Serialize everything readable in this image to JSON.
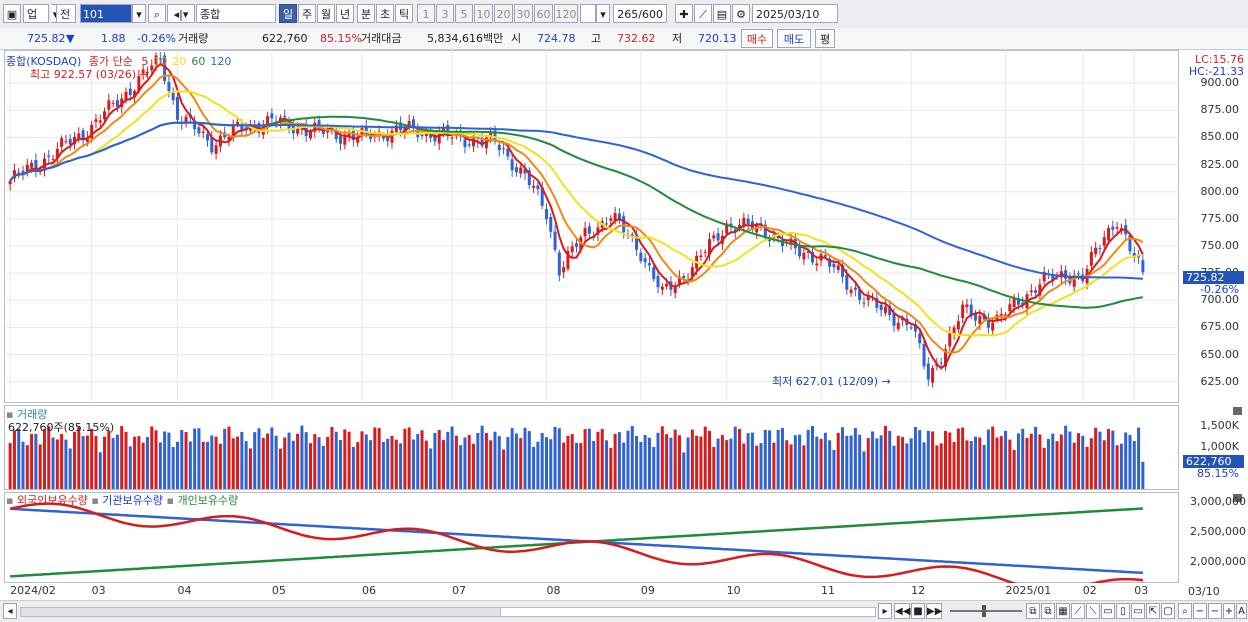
{
  "toolbar": {
    "market": "업",
    "prev": "전",
    "code": "101",
    "index_name": "종합(KOSDAQ)",
    "periods": [
      "일",
      "주",
      "월",
      "년",
      "분",
      "초",
      "틱"
    ],
    "active_period": "일",
    "intervals": [
      "1",
      "3",
      "5",
      "10",
      "20",
      "30",
      "60",
      "120"
    ],
    "count": "265",
    "total": "/600",
    "date": "2025/03/10"
  },
  "infobar": {
    "price": "725.82",
    "change": "1.88",
    "change_pct": "-0.26%",
    "volume_label": "거래량",
    "volume": "622,760",
    "volume_pct": "85.15%",
    "amount_label": "거래대금",
    "amount": "5,834,616백만",
    "open_label": "시",
    "open": "724.78",
    "high_label": "고",
    "high": "732.62",
    "low_label": "저",
    "low": "720.13",
    "buy_label": "매수",
    "sell_label": "매도",
    "eval_label": "평"
  },
  "price_panel": {
    "legend_name": "종합(KOSDAQ)",
    "legend_type": "종가 단순",
    "ma_periods": [
      "5",
      "10",
      "20",
      "60",
      "120"
    ],
    "ma_colors": [
      "#d81b1b",
      "#f08a12",
      "#f2e21a",
      "#1e8c3a",
      "#2f62d6"
    ],
    "max_label": "최고 922.57 (03/26)",
    "min_label": "최저 627.01 (12/09)",
    "lc": "LC:15.76",
    "hc": "HC:-21.33",
    "current": "725.82",
    "current_pct": "-0.26%"
  },
  "volume_panel": {
    "legend": "거래량",
    "value_label": "622,760주(85.15%)",
    "current": "622,760",
    "current_pct": "85.15%"
  },
  "holding_panel": {
    "legends": [
      "외국인보유수량",
      "기관보유수량",
      "개인보유수량"
    ],
    "colors": [
      "#d81b1b",
      "#2f62d6",
      "#1e8c3a"
    ]
  },
  "x_axis": [
    "2024/02",
    "03",
    "04",
    "05",
    "06",
    "07",
    "08",
    "09",
    "10",
    "11",
    "12",
    "2025/01",
    "02",
    "03"
  ],
  "x_axis_end": "03/10",
  "chart_data": [
    {
      "type": "candlestick",
      "title": "",
      "ylim": [
        610,
        925
      ],
      "yticks": [
        "900.00",
        "875.00",
        "850.00",
        "825.00",
        "800.00",
        "775.00",
        "750.00",
        "725.00",
        "700.00",
        "675.00",
        "650.00",
        "625.00"
      ],
      "close_approx": [
        {
          "x": "2024/02",
          "y": 810
        },
        {
          "x": "03",
          "y": 860
        },
        {
          "x": "2024/03/26",
          "y": 922.57
        },
        {
          "x": "04",
          "y": 870
        },
        {
          "x": "05",
          "y": 865
        },
        {
          "x": "06",
          "y": 850
        },
        {
          "x": "07",
          "y": 850
        },
        {
          "x": "08",
          "y": 770
        },
        {
          "x": "09",
          "y": 710
        },
        {
          "x": "10",
          "y": 770
        },
        {
          "x": "11",
          "y": 740
        },
        {
          "x": "2024/12/09",
          "y": 627.01
        },
        {
          "x": "2025/01",
          "y": 700
        },
        {
          "x": "02",
          "y": 760
        },
        {
          "x": "2025/03/10",
          "y": 725.82
        }
      ]
    },
    {
      "type": "bar",
      "title": "",
      "yticks": [
        "1,500K",
        "1,000K"
      ]
    },
    {
      "type": "line",
      "title": "",
      "yticks": [
        "3,000,000",
        "2,500,000",
        "2,000,000"
      ]
    }
  ]
}
